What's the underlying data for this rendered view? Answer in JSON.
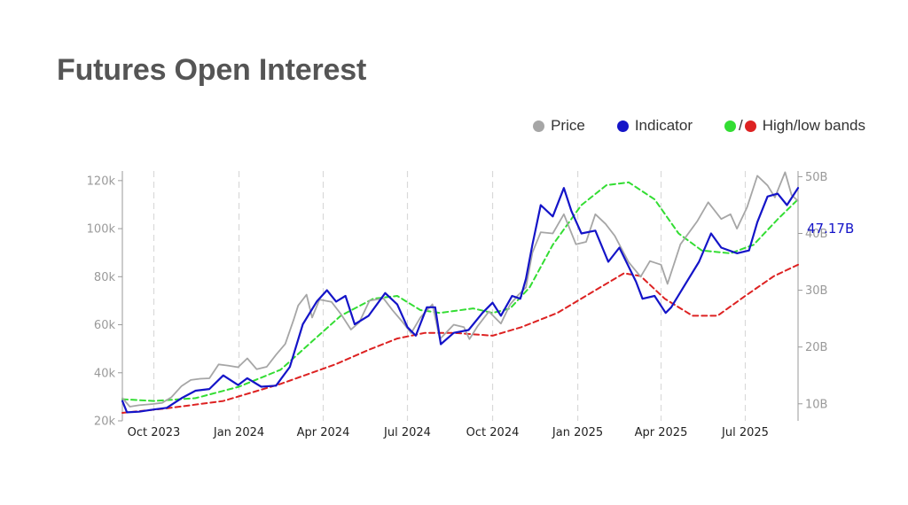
{
  "page": {
    "title": "Futures Open Interest"
  },
  "legend": {
    "price": "Price",
    "indicator": "Indicator",
    "slash": "/",
    "bands": "High/low bands"
  },
  "colors": {
    "price": "#a6a6a6",
    "indicator": "#1414c8",
    "high_band": "#33dd33",
    "low_band": "#dd2222",
    "title": "#555555"
  },
  "chart_data": {
    "type": "line",
    "x_ticks": [
      "Oct 2023",
      "Jan 2024",
      "Apr 2024",
      "Jul 2024",
      "Oct 2024",
      "Jan 2025",
      "Apr 2025",
      "Jul 2025"
    ],
    "x_tick_dates": [
      "2023-10-01",
      "2024-01-01",
      "2024-04-01",
      "2024-07-01",
      "2024-10-01",
      "2025-01-01",
      "2025-04-01",
      "2025-07-01"
    ],
    "x_range": [
      "2023-08-28",
      "2025-08-27"
    ],
    "y_left": {
      "label": "",
      "ticks": [
        "20k",
        "40k",
        "60k",
        "80k",
        "100k",
        "120k"
      ],
      "values": [
        20000,
        40000,
        60000,
        80000,
        100000,
        120000
      ],
      "range": [
        20000,
        124000
      ]
    },
    "y_right": {
      "label": "",
      "ticks": [
        "10B",
        "20B",
        "30B",
        "40B",
        "50B"
      ],
      "values": [
        10,
        20,
        30,
        40,
        50
      ],
      "range": [
        7,
        51
      ]
    },
    "grid": "vertical dashed at x ticks",
    "last_value_label": "47.17B",
    "series": [
      {
        "name": "Price",
        "axis": "left",
        "points": [
          [
            "2023-08-28",
            29500
          ],
          [
            "2023-09-05",
            25900
          ],
          [
            "2023-09-15",
            26500
          ],
          [
            "2023-09-30",
            27000
          ],
          [
            "2023-10-10",
            27500
          ],
          [
            "2023-10-20",
            29800
          ],
          [
            "2023-10-31",
            34500
          ],
          [
            "2023-11-10",
            37000
          ],
          [
            "2023-11-20",
            37500
          ],
          [
            "2023-11-30",
            37700
          ],
          [
            "2023-12-10",
            43500
          ],
          [
            "2023-12-20",
            43000
          ],
          [
            "2023-12-31",
            42300
          ],
          [
            "2024-01-10",
            46000
          ],
          [
            "2024-01-20",
            41500
          ],
          [
            "2024-01-31",
            42500
          ],
          [
            "2024-02-10",
            47500
          ],
          [
            "2024-02-20",
            52000
          ],
          [
            "2024-02-29",
            62000
          ],
          [
            "2024-03-05",
            68000
          ],
          [
            "2024-03-14",
            72500
          ],
          [
            "2024-03-20",
            63000
          ],
          [
            "2024-03-28",
            70500
          ],
          [
            "2024-04-10",
            69500
          ],
          [
            "2024-04-20",
            64500
          ],
          [
            "2024-05-01",
            58000
          ],
          [
            "2024-05-10",
            61000
          ],
          [
            "2024-05-21",
            70000
          ],
          [
            "2024-06-05",
            71000
          ],
          [
            "2024-06-15",
            66000
          ],
          [
            "2024-06-25",
            61500
          ],
          [
            "2024-07-05",
            56500
          ],
          [
            "2024-07-15",
            63000
          ],
          [
            "2024-07-28",
            68500
          ],
          [
            "2024-08-05",
            54000
          ],
          [
            "2024-08-20",
            60000
          ],
          [
            "2024-08-31",
            59000
          ],
          [
            "2024-09-06",
            54000
          ],
          [
            "2024-09-15",
            59500
          ],
          [
            "2024-09-27",
            65500
          ],
          [
            "2024-10-10",
            60500
          ],
          [
            "2024-10-20",
            68500
          ],
          [
            "2024-10-29",
            72500
          ],
          [
            "2024-11-06",
            75500
          ],
          [
            "2024-11-13",
            90000
          ],
          [
            "2024-11-22",
            98500
          ],
          [
            "2024-12-05",
            98000
          ],
          [
            "2024-12-17",
            106000
          ],
          [
            "2024-12-30",
            93500
          ],
          [
            "2025-01-10",
            94500
          ],
          [
            "2025-01-20",
            106000
          ],
          [
            "2025-01-31",
            102000
          ],
          [
            "2025-02-10",
            97000
          ],
          [
            "2025-02-25",
            86000
          ],
          [
            "2025-03-10",
            80000
          ],
          [
            "2025-03-20",
            86500
          ],
          [
            "2025-04-01",
            85000
          ],
          [
            "2025-04-08",
            77000
          ],
          [
            "2025-04-22",
            93500
          ],
          [
            "2025-05-10",
            103000
          ],
          [
            "2025-05-22",
            111000
          ],
          [
            "2025-06-05",
            104000
          ],
          [
            "2025-06-15",
            106000
          ],
          [
            "2025-06-22",
            100000
          ],
          [
            "2025-07-03",
            109000
          ],
          [
            "2025-07-14",
            122000
          ],
          [
            "2025-07-25",
            118000
          ],
          [
            "2025-08-02",
            113000
          ],
          [
            "2025-08-13",
            123500
          ],
          [
            "2025-08-20",
            114000
          ],
          [
            "2025-08-27",
            111500
          ]
        ]
      },
      {
        "name": "Indicator",
        "axis": "right",
        "points": [
          [
            "2023-08-28",
            10.5
          ],
          [
            "2023-09-02",
            8.5
          ],
          [
            "2023-09-15",
            8.6
          ],
          [
            "2023-10-01",
            9.0
          ],
          [
            "2023-10-15",
            9.3
          ],
          [
            "2023-10-31",
            11.0
          ],
          [
            "2023-11-15",
            12.3
          ],
          [
            "2023-11-30",
            12.6
          ],
          [
            "2023-12-15",
            15.0
          ],
          [
            "2023-12-31",
            13.3
          ],
          [
            "2024-01-10",
            14.5
          ],
          [
            "2024-01-25",
            13.0
          ],
          [
            "2024-02-10",
            13.2
          ],
          [
            "2024-02-25",
            16.5
          ],
          [
            "2024-03-10",
            24.0
          ],
          [
            "2024-03-25",
            28.0
          ],
          [
            "2024-04-05",
            30.0
          ],
          [
            "2024-04-15",
            28.0
          ],
          [
            "2024-04-25",
            29.0
          ],
          [
            "2024-05-05",
            24.0
          ],
          [
            "2024-05-20",
            25.5
          ],
          [
            "2024-06-07",
            29.5
          ],
          [
            "2024-06-20",
            27.5
          ],
          [
            "2024-07-01",
            23.5
          ],
          [
            "2024-07-10",
            22.0
          ],
          [
            "2024-07-22",
            27.0
          ],
          [
            "2024-07-31",
            27.0
          ],
          [
            "2024-08-06",
            20.5
          ],
          [
            "2024-08-20",
            22.5
          ],
          [
            "2024-09-05",
            23.0
          ],
          [
            "2024-09-20",
            26.0
          ],
          [
            "2024-10-01",
            27.8
          ],
          [
            "2024-10-10",
            25.5
          ],
          [
            "2024-10-22",
            29.0
          ],
          [
            "2024-10-31",
            28.5
          ],
          [
            "2024-11-06",
            32.0
          ],
          [
            "2024-11-13",
            38.0
          ],
          [
            "2024-11-22",
            45.0
          ],
          [
            "2024-12-05",
            43.0
          ],
          [
            "2024-12-17",
            48.0
          ],
          [
            "2024-12-25",
            44.0
          ],
          [
            "2025-01-05",
            40.0
          ],
          [
            "2025-01-20",
            40.5
          ],
          [
            "2025-02-03",
            35.0
          ],
          [
            "2025-02-15",
            37.5
          ],
          [
            "2025-03-05",
            31.5
          ],
          [
            "2025-03-12",
            28.5
          ],
          [
            "2025-03-25",
            29.0
          ],
          [
            "2025-04-06",
            26.0
          ],
          [
            "2025-04-12",
            27.0
          ],
          [
            "2025-04-25",
            30.5
          ],
          [
            "2025-05-12",
            35.0
          ],
          [
            "2025-05-25",
            40.0
          ],
          [
            "2025-06-05",
            37.5
          ],
          [
            "2025-06-22",
            36.5
          ],
          [
            "2025-07-05",
            37.0
          ],
          [
            "2025-07-14",
            42.0
          ],
          [
            "2025-07-25",
            46.5
          ],
          [
            "2025-08-05",
            47.0
          ],
          [
            "2025-08-15",
            45.0
          ],
          [
            "2025-08-27",
            48.0
          ]
        ]
      },
      {
        "name": "High band",
        "axis": "right",
        "points": [
          [
            "2023-08-28",
            10.8
          ],
          [
            "2023-10-01",
            10.5
          ],
          [
            "2023-11-15",
            11.0
          ],
          [
            "2024-01-01",
            13.0
          ],
          [
            "2024-02-15",
            16.0
          ],
          [
            "2024-03-20",
            21.0
          ],
          [
            "2024-04-20",
            25.5
          ],
          [
            "2024-05-25",
            28.5
          ],
          [
            "2024-06-20",
            29.0
          ],
          [
            "2024-07-15",
            26.5
          ],
          [
            "2024-08-05",
            26.0
          ],
          [
            "2024-09-10",
            26.8
          ],
          [
            "2024-10-01",
            26.0
          ],
          [
            "2024-10-20",
            26.8
          ],
          [
            "2024-11-10",
            30.5
          ],
          [
            "2024-12-05",
            38.0
          ],
          [
            "2025-01-05",
            45.0
          ],
          [
            "2025-02-01",
            48.5
          ],
          [
            "2025-02-25",
            49.0
          ],
          [
            "2025-03-25",
            46.0
          ],
          [
            "2025-04-20",
            40.0
          ],
          [
            "2025-05-15",
            37.0
          ],
          [
            "2025-06-15",
            36.5
          ],
          [
            "2025-07-10",
            38.0
          ],
          [
            "2025-08-05",
            42.5
          ],
          [
            "2025-08-27",
            46.0
          ]
        ]
      },
      {
        "name": "Low band",
        "axis": "right",
        "points": [
          [
            "2023-08-28",
            8.4
          ],
          [
            "2023-10-15",
            9.2
          ],
          [
            "2023-12-15",
            10.5
          ],
          [
            "2024-02-15",
            13.5
          ],
          [
            "2024-04-15",
            17.0
          ],
          [
            "2024-05-20",
            19.5
          ],
          [
            "2024-06-20",
            21.5
          ],
          [
            "2024-07-20",
            22.5
          ],
          [
            "2024-08-20",
            22.5
          ],
          [
            "2024-10-01",
            22.0
          ],
          [
            "2024-11-01",
            23.5
          ],
          [
            "2024-12-10",
            26.0
          ],
          [
            "2025-01-20",
            30.0
          ],
          [
            "2025-02-20",
            33.0
          ],
          [
            "2025-03-10",
            32.5
          ],
          [
            "2025-04-05",
            28.5
          ],
          [
            "2025-05-05",
            25.5
          ],
          [
            "2025-06-01",
            25.5
          ],
          [
            "2025-07-01",
            29.0
          ],
          [
            "2025-08-01",
            32.5
          ],
          [
            "2025-08-27",
            34.5
          ]
        ]
      }
    ]
  }
}
